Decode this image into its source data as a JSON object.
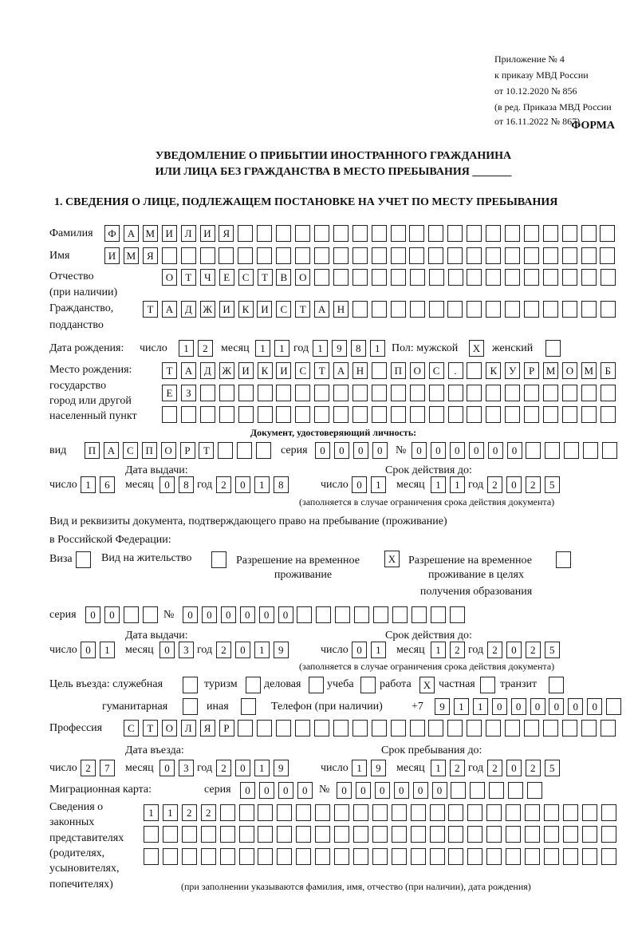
{
  "header": {
    "appendix_lines": [
      "Приложение № 4",
      "к приказу МВД России",
      "от 10.12.2020 № 856"
    ],
    "edition_lines": [
      "(в ред. Приказа МВД России",
      "от 16.11.2022 № 867)"
    ],
    "form_label": "ФОРМА",
    "title_line1": "УВЕДОМЛЕНИЕ О ПРИБЫТИИ ИНОСТРАННОГО ГРАЖДАНИНА",
    "title_line2": "ИЛИ ЛИЦА БЕЗ ГРАЖДАНСТВА В МЕСТО ПРЕБЫВАНИЯ _______",
    "section1": "1. СВЕДЕНИЯ О ЛИЦЕ, ПОДЛЕЖАЩЕМ ПОСТАНОВКЕ НА УЧЕТ ПО МЕСТУ ПРЕБЫВАНИЯ"
  },
  "labels": {
    "surname": "Фамилия",
    "name": "Имя",
    "patronymic": [
      "Отчество",
      "(при наличии)"
    ],
    "citizenship": [
      "Гражданство,",
      "подданство"
    ],
    "birth_date": "Дата рождения:",
    "day": "число",
    "month": "месяц",
    "year": "год",
    "sex": "Пол: мужской",
    "female": "женский",
    "birthplace": [
      "Место рождения:",
      "государство",
      "город или другой",
      "населенный пункт"
    ],
    "id_doc": "Документ, удостоверяющий личность:",
    "kind": "вид",
    "series": "серия",
    "number": "№",
    "issue_date": "Дата выдачи:",
    "valid_until": "Срок действия до:",
    "valid_note": "(заполняется в случае ограничения срока действия документа)",
    "permit_doc": [
      "Вид и реквизиты документа, подтверждающего право на пребывание (проживание)",
      "в Российской Федерации:"
    ],
    "visa": "Виза",
    "residence": "Вид на жительство",
    "temp_permit": [
      "Разрешение на временное",
      "проживание"
    ],
    "temp_permit_edu": [
      "Разрешение на временное",
      "проживание в целях",
      "получения образования"
    ],
    "purpose": "Цель въезда: служебная",
    "tourism": "туризм",
    "business": "деловая",
    "study": "учеба",
    "work": "работа",
    "private": "частная",
    "transit": "транзит",
    "humanitarian": "гуманитарная",
    "other": "иная",
    "phone": "Телефон (при наличии)",
    "phone_prefix": "+7",
    "profession": "Профессия",
    "entry_date": "Дата въезда:",
    "stay_until": "Срок пребывания до:",
    "migration_card": "Миграционная карта:",
    "representatives": [
      "Сведения о",
      "законных",
      "представителях",
      "(родителях,",
      "усыновителях,",
      "попечителях)"
    ],
    "representatives_note": "(при заполнении указываются фамилия, имя, отчество (при наличии), дата рождения)"
  },
  "values": {
    "surname": "ФАМИЛИЯ",
    "name": "ИМЯ",
    "patronymic": "ОТЧЕСТВО",
    "citizenship": "ТАДЖИКИСТАН",
    "birth": {
      "day": "12",
      "month": "11",
      "year": "1981"
    },
    "sex_male": "X",
    "sex_female": "",
    "birthplace": [
      "ТАДЖИКИСТАН ПОС. КУРМОМБ",
      "ЕЗ",
      ""
    ],
    "id_doc": {
      "kind": "ПАСПОРТ",
      "series": "0000",
      "number": "000000",
      "issued": {
        "day": "16",
        "month": "08",
        "year": "2018"
      },
      "valid": {
        "day": "01",
        "month": "11",
        "year": "2025"
      }
    },
    "permit_type": {
      "visa": "",
      "residence": "",
      "temp_permit": "X",
      "temp_permit_edu": ""
    },
    "permit": {
      "series": "00",
      "number": "000000",
      "issued": {
        "day": "01",
        "month": "03",
        "year": "2019"
      },
      "valid": {
        "day": "01",
        "month": "12",
        "year": "2025"
      }
    },
    "purpose": {
      "service": "",
      "tourism": "",
      "business": "",
      "study": "",
      "work": "X",
      "private": "",
      "transit": "",
      "humanitarian": "",
      "other": ""
    },
    "phone": "911000000",
    "profession": "СТОЛЯР",
    "entry": {
      "day": "27",
      "month": "03",
      "year": "2019"
    },
    "stay_until": {
      "day": "19",
      "month": "12",
      "year": "2025"
    },
    "migration_card": {
      "series": "0000",
      "number": "000000"
    },
    "representatives": [
      "1122",
      "",
      ""
    ]
  }
}
